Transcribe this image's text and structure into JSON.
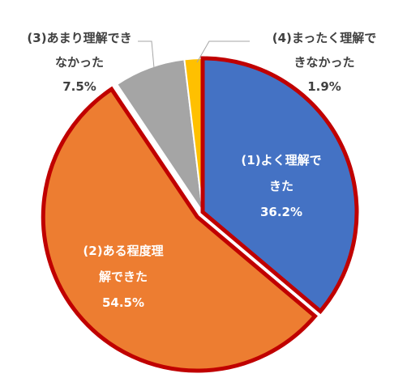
{
  "chart_data": {
    "type": "pie",
    "title": "",
    "slices": [
      {
        "label_lines": [
          "(1)よく理解で",
          "きた"
        ],
        "value": 36.2,
        "value_label": "36.2%",
        "color": "#4472C4",
        "label_color": "#FFFFFF",
        "highlighted": false
      },
      {
        "label_lines": [
          "(2)ある程度理",
          "解できた"
        ],
        "value": 54.5,
        "value_label": "54.5%",
        "color": "#ED7D31",
        "label_color": "#FFFFFF",
        "highlighted": true
      },
      {
        "label_lines": [
          "(3)あまり理解でき",
          "なかった"
        ],
        "value": 7.5,
        "value_label": "7.5%",
        "color": "#A5A5A5",
        "label_color": "#404040",
        "highlighted": false
      },
      {
        "label_lines": [
          "(4)まったく理解で",
          "きなかった"
        ],
        "value": 1.9,
        "value_label": "1.9%",
        "color": "#FFC000",
        "label_color": "#404040",
        "highlighted": false
      }
    ],
    "highlight_color": "#C00000",
    "legend": "none"
  }
}
